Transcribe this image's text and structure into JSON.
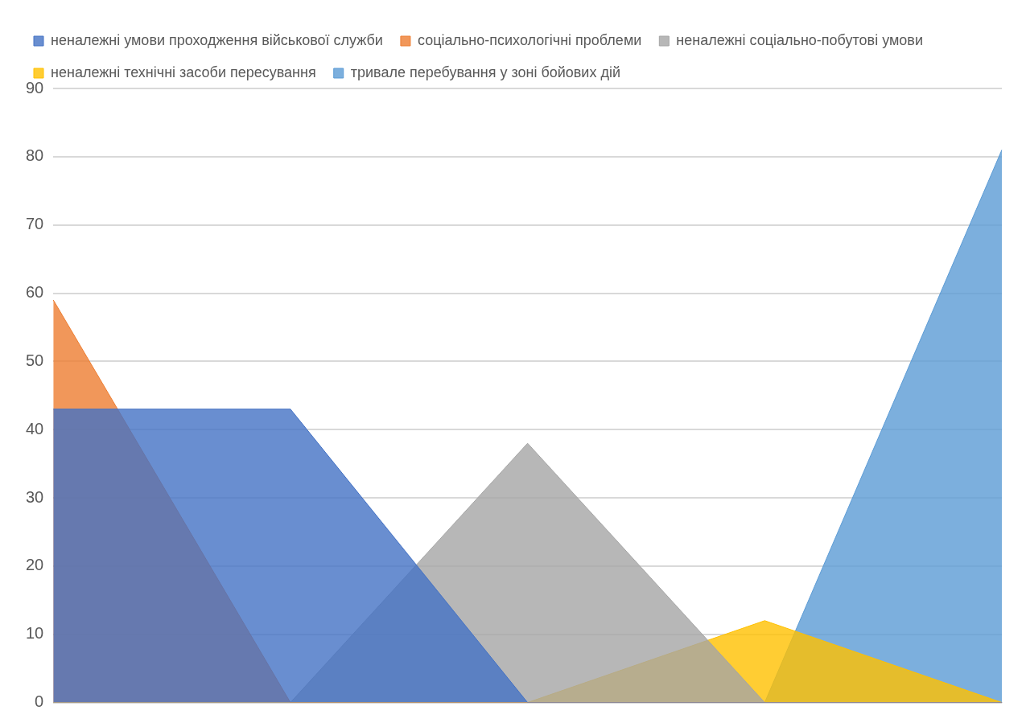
{
  "chart_data": {
    "type": "area",
    "categories": [
      null,
      null,
      null,
      null,
      null
    ],
    "series": [
      {
        "name": "неналежні умови проходження військової служби",
        "color": "#4472c4",
        "values": [
          43,
          43,
          0,
          0,
          0
        ]
      },
      {
        "name": "соціально-психологічні проблеми",
        "color": "#ed7d31",
        "values": [
          59,
          0,
          0,
          0,
          0
        ]
      },
      {
        "name": "неналежні соціально-побутові умови",
        "color": "#a5a5a5",
        "values": [
          0,
          0,
          38,
          0,
          0
        ]
      },
      {
        "name": "неналежні технічні засоби пересування",
        "color": "#ffc000",
        "values": [
          0,
          0,
          0,
          12,
          0
        ]
      },
      {
        "name": "тривале перебування у зоні бойових дій",
        "color": "#5b9bd5",
        "values": [
          0,
          0,
          0,
          0,
          81
        ]
      }
    ],
    "ylim": [
      0,
      90
    ],
    "yticks": [
      0,
      10,
      20,
      30,
      40,
      50,
      60,
      70,
      80,
      90
    ],
    "grid": "y",
    "legend": "top"
  }
}
